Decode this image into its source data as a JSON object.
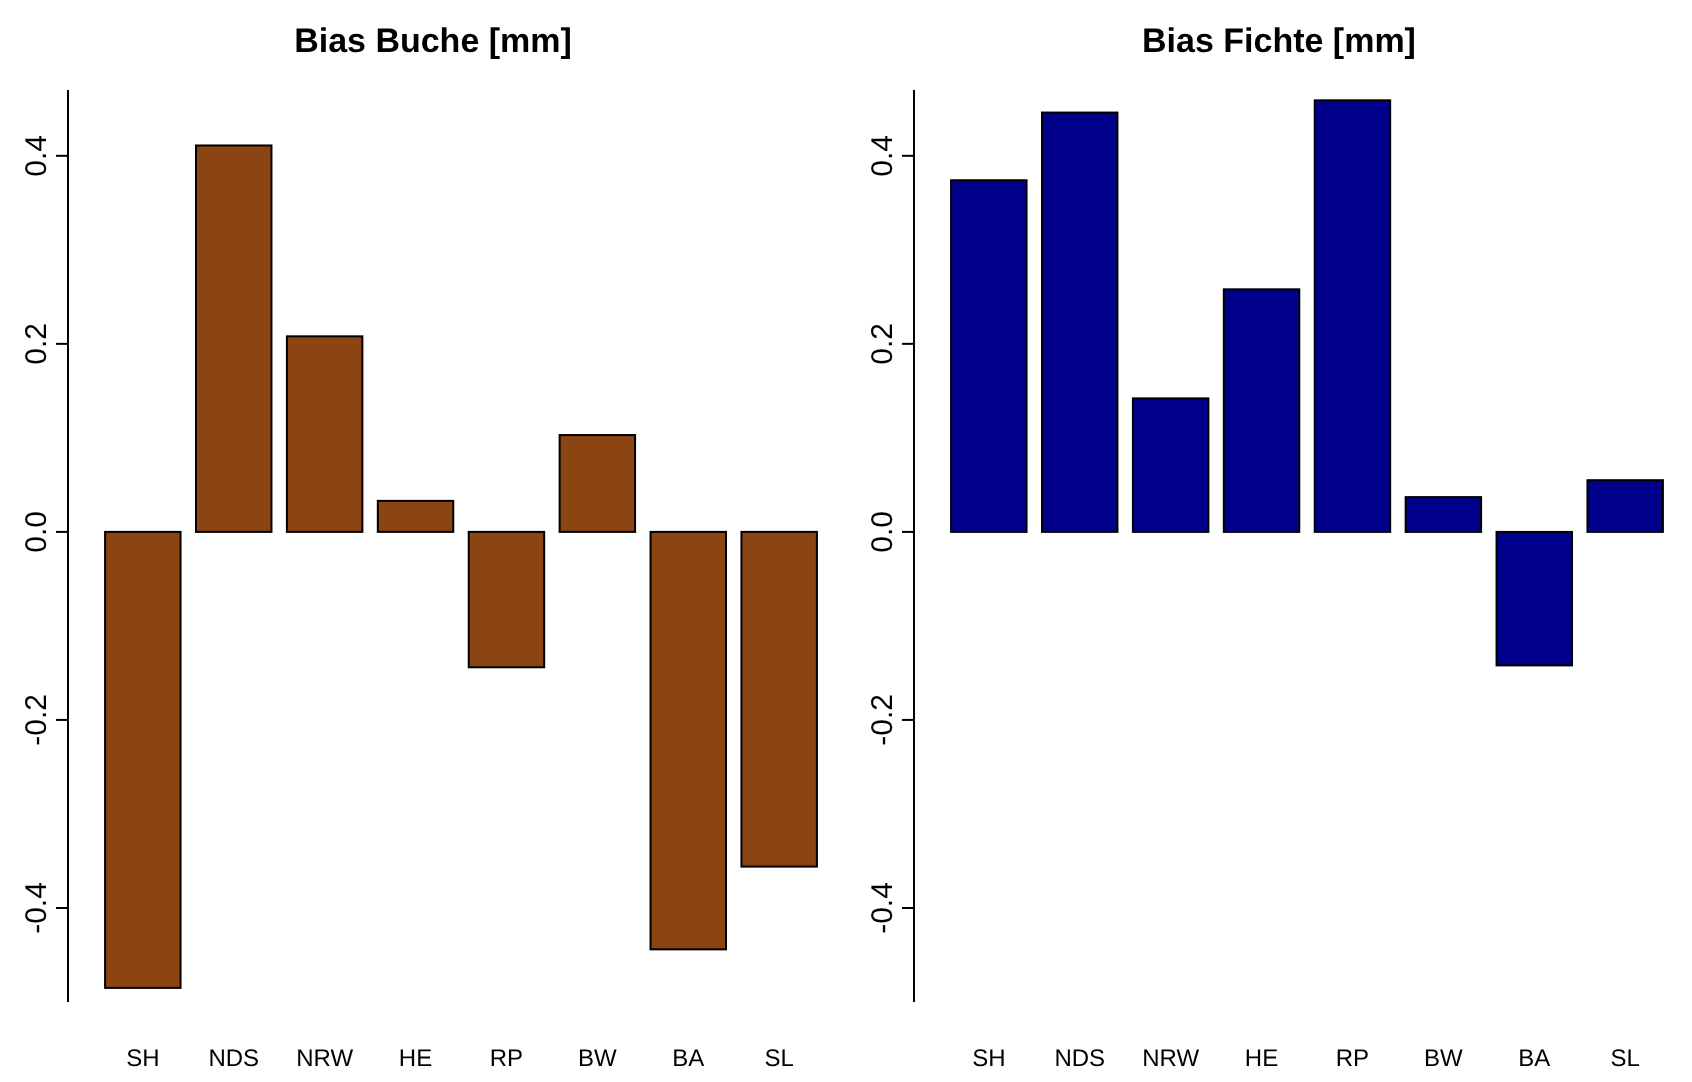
{
  "chart_data": [
    {
      "type": "bar",
      "title": "Bias Buche [mm]",
      "categories": [
        "SH",
        "NDS",
        "NRW",
        "HE",
        "RP",
        "BW",
        "BA",
        "SL"
      ],
      "values": [
        -0.485,
        0.411,
        0.208,
        0.033,
        -0.144,
        0.103,
        -0.444,
        -0.356
      ],
      "color": "#8b4513",
      "ylim": [
        -0.5,
        0.47
      ],
      "yticks": [
        {
          "value": -0.4,
          "label": "-0.4"
        },
        {
          "value": -0.2,
          "label": "-0.2"
        },
        {
          "value": 0,
          "label": "0.0"
        },
        {
          "value": 0.2,
          "label": "0.2"
        },
        {
          "value": 0.4,
          "label": "0.4"
        }
      ]
    },
    {
      "type": "bar",
      "title": "Bias Fichte [mm]",
      "categories": [
        "SH",
        "NDS",
        "NRW",
        "HE",
        "RP",
        "BW",
        "BA",
        "SL"
      ],
      "values": [
        0.374,
        0.446,
        0.142,
        0.258,
        0.459,
        0.037,
        -0.142,
        0.055
      ],
      "color": "#00008b",
      "ylim": [
        -0.5,
        0.47
      ],
      "yticks": [
        {
          "value": -0.4,
          "label": "-0.4"
        },
        {
          "value": -0.2,
          "label": "-0.2"
        },
        {
          "value": 0,
          "label": "0.0"
        },
        {
          "value": 0.2,
          "label": "0.2"
        },
        {
          "value": 0.4,
          "label": "0.4"
        }
      ]
    }
  ]
}
